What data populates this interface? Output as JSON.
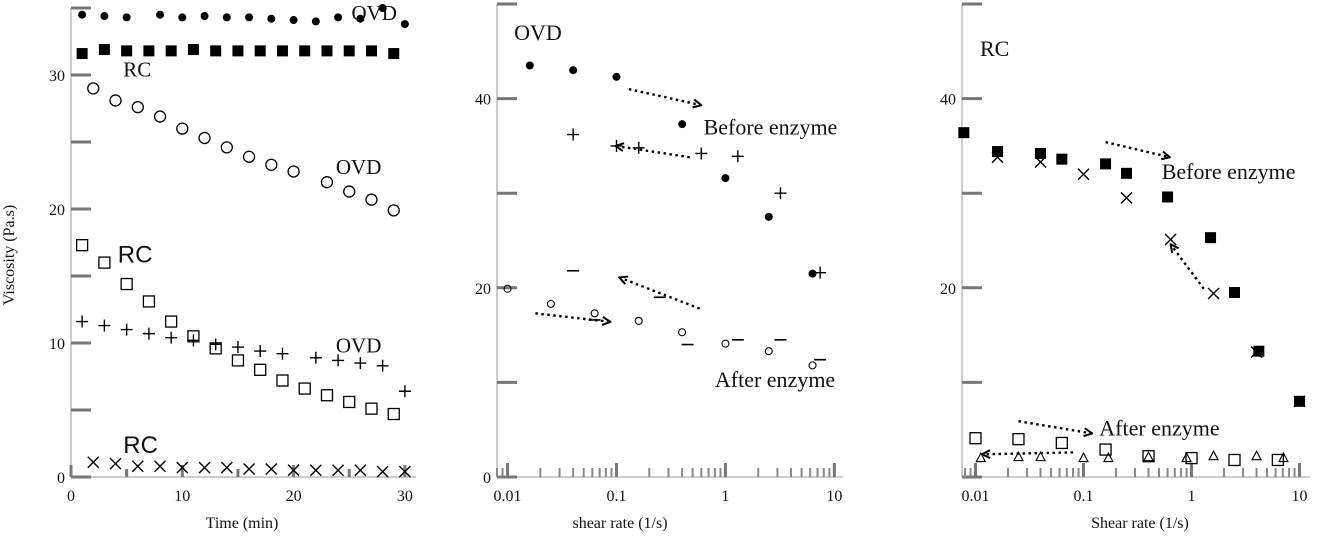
{
  "chart_data": [
    {
      "type": "scatter",
      "title": "",
      "xlabel": "Time (min)",
      "ylabel": "Viscosity (Pa.s)",
      "xlim": [
        0,
        31
      ],
      "ylim": [
        0,
        35
      ],
      "xticks": [
        0,
        10,
        20,
        30
      ],
      "yticks": [
        0,
        10,
        20,
        30
      ],
      "series": [
        {
          "name": "OVD (filled circle)",
          "marker": "dot",
          "x": [
            1,
            3,
            5,
            8,
            10,
            12,
            14,
            16,
            18,
            20,
            22,
            24,
            26,
            28,
            30
          ],
          "y": [
            34.5,
            34.4,
            34.3,
            34.5,
            34.3,
            34.4,
            34.3,
            34.3,
            34.2,
            34.1,
            34.0,
            34.3,
            34.2,
            35,
            33.8
          ]
        },
        {
          "name": "RC (filled square)",
          "marker": "square",
          "x": [
            1,
            3,
            5,
            7,
            9,
            11,
            13,
            15,
            17,
            19,
            21,
            23,
            25,
            27,
            29
          ],
          "y": [
            31.6,
            31.9,
            31.8,
            31.8,
            31.8,
            31.9,
            31.8,
            31.8,
            31.8,
            31.8,
            31.8,
            31.8,
            31.8,
            31.8,
            31.6
          ]
        },
        {
          "name": "OVD (open circle)",
          "marker": "circle",
          "x": [
            2,
            4,
            6,
            8,
            10,
            12,
            14,
            16,
            18,
            20,
            23,
            25,
            27,
            29
          ],
          "y": [
            29.0,
            28.1,
            27.6,
            26.9,
            26.0,
            25.3,
            24.6,
            23.9,
            23.3,
            22.8,
            22.0,
            21.3,
            20.7,
            19.9
          ]
        },
        {
          "name": "RC (open square)",
          "marker": "open-square",
          "x": [
            1,
            3,
            5,
            7,
            9,
            11,
            13,
            15,
            17,
            19,
            21,
            23,
            25,
            27,
            29
          ],
          "y": [
            17.3,
            16.0,
            14.4,
            13.1,
            11.6,
            10.5,
            9.6,
            8.7,
            8.0,
            7.2,
            6.6,
            6.1,
            5.6,
            5.1,
            4.7
          ]
        },
        {
          "name": "OVD (plus)",
          "marker": "plus",
          "x": [
            1,
            3,
            5,
            7,
            9,
            11,
            13,
            15,
            17,
            19,
            22,
            24,
            26,
            28,
            30
          ],
          "y": [
            11.6,
            11.3,
            11.0,
            10.7,
            10.4,
            10.2,
            9.9,
            9.7,
            9.4,
            9.2,
            8.9,
            8.7,
            8.5,
            8.3,
            6.4
          ]
        },
        {
          "name": "RC (cross)",
          "marker": "x",
          "x": [
            2,
            4,
            6,
            8,
            10,
            12,
            14,
            16,
            18,
            20,
            22,
            24,
            26,
            28,
            30
          ],
          "y": [
            1.1,
            1.0,
            0.8,
            0.8,
            0.7,
            0.7,
            0.7,
            0.6,
            0.6,
            0.5,
            0.5,
            0.5,
            0.5,
            0.4,
            0.4
          ]
        }
      ],
      "annotations": [
        {
          "text": "OVD",
          "x": 25.2,
          "y": 34.1,
          "size": 21
        },
        {
          "text": "RC",
          "x": 4.7,
          "y": 29.9,
          "size": 21
        },
        {
          "text": "OVD",
          "x": 23.8,
          "y": 22.6,
          "size": 21
        },
        {
          "text": "RC",
          "x": 4.2,
          "y": 16.0,
          "size": 24,
          "sans": true
        },
        {
          "text": "OVD",
          "x": 23.8,
          "y": 9.3,
          "size": 21
        },
        {
          "text": "RC",
          "x": 4.7,
          "y": 1.8,
          "size": 24,
          "sans": true
        }
      ]
    },
    {
      "type": "scatter",
      "title": "",
      "xlabel": "shear rate (1/s)",
      "ylabel": "",
      "xscale": "log",
      "xlim": [
        0.008,
        12
      ],
      "ylim": [
        0,
        50
      ],
      "xticks": [
        0.01,
        0.1,
        1,
        10
      ],
      "xticklabels": [
        "0.01",
        "0.1",
        "1",
        "10"
      ],
      "yticks": [
        0,
        20,
        40
      ],
      "series": [
        {
          "name": "Before enzyme (dot)",
          "marker": "dot",
          "x": [
            0.016,
            0.04,
            0.1,
            0.4,
            1,
            2.5,
            6.3
          ],
          "y": [
            43.5,
            43.0,
            42.3,
            37.3,
            31.6,
            27.5,
            21.5
          ]
        },
        {
          "name": "Before enzyme (plus)",
          "marker": "plus",
          "x": [
            0.04,
            0.1,
            0.16,
            0.6,
            1.3,
            3.2,
            7.4
          ],
          "y": [
            36.2,
            35.0,
            34.8,
            34.2,
            33.9,
            30.0,
            21.6
          ]
        },
        {
          "name": "After enzyme (small circle)",
          "marker": "small-circle",
          "x": [
            0.01,
            0.025,
            0.063,
            0.16,
            0.4,
            1,
            2.5,
            6.3
          ],
          "y": [
            19.9,
            18.3,
            17.3,
            16.5,
            15.3,
            14.1,
            13.3,
            11.8
          ]
        },
        {
          "name": "After enzyme (dash)",
          "marker": "dash",
          "x": [
            0.04,
            0.25,
            0.063,
            0.45,
            1.3,
            3.2,
            7.4
          ],
          "y": [
            21.8,
            19.0,
            16.6,
            14.0,
            14.5,
            14.5,
            12.4
          ]
        }
      ],
      "annotations": [
        {
          "text": "OVD",
          "x": 0.0115,
          "y": 46.2,
          "size": 22
        },
        {
          "text": "Before enzyme",
          "x": 0.63,
          "y": 36.2,
          "size": 22
        },
        {
          "text": "After enzyme",
          "x": 0.8,
          "y": 9.5,
          "size": 22
        }
      ],
      "arrows": [
        {
          "from": [
            0.13,
            41.0
          ],
          "to": [
            0.6,
            39.3
          ]
        },
        {
          "from": [
            0.47,
            33.8
          ],
          "to": [
            0.098,
            35.0
          ]
        },
        {
          "from": [
            0.018,
            17.3
          ],
          "to": [
            0.088,
            16.4
          ]
        },
        {
          "from": [
            0.58,
            17.8
          ],
          "to": [
            0.106,
            21.1
          ]
        }
      ]
    },
    {
      "type": "scatter",
      "title": "",
      "xlabel": "Shear rate (1/s)",
      "ylabel": "",
      "xscale": "log",
      "xlim": [
        0.0075,
        12.5
      ],
      "ylim": [
        0,
        50
      ],
      "xticks": [
        0.01,
        0.1,
        1,
        10
      ],
      "xticklabels": [
        "0.01",
        "0.1",
        "1",
        "10"
      ],
      "yticks": [
        20,
        40
      ],
      "series": [
        {
          "name": "Before enzyme (filled square)",
          "marker": "square",
          "x": [
            0.0078,
            0.016,
            0.04,
            0.063,
            0.16,
            0.25,
            0.6,
            1.5,
            2.5,
            4.2,
            10
          ],
          "y": [
            36.4,
            34.4,
            34.2,
            33.6,
            33.1,
            32.1,
            29.6,
            25.3,
            19.5,
            13.3,
            8.0
          ]
        },
        {
          "name": "Before enzyme (cross)",
          "marker": "x",
          "x": [
            0.016,
            0.04,
            0.1,
            0.25,
            0.64,
            1.6,
            4.0,
            10
          ],
          "y": [
            33.8,
            33.3,
            32.0,
            29.5,
            25.1,
            19.4,
            13.2,
            8.0
          ]
        },
        {
          "name": "After enzyme (open square)",
          "marker": "open-square",
          "x": [
            0.01,
            0.025,
            0.063,
            0.16,
            0.4,
            1,
            2.5,
            6.3
          ],
          "y": [
            4.1,
            4.0,
            3.6,
            2.9,
            2.2,
            2.0,
            1.8,
            1.8
          ]
        },
        {
          "name": "After enzyme (triangle)",
          "marker": "triangle",
          "x": [
            0.0112,
            0.025,
            0.04,
            0.1,
            0.17,
            0.4,
            0.9,
            1.6,
            4.0,
            7.1
          ],
          "y": [
            2.0,
            2.1,
            2.1,
            2.0,
            2.0,
            2.1,
            2.0,
            2.2,
            2.2,
            2.0
          ]
        }
      ],
      "annotations": [
        {
          "text": "RC",
          "x": 0.011,
          "y": 44.5,
          "size": 22
        },
        {
          "text": "Before enzyme",
          "x": 0.53,
          "y": 31.5,
          "size": 22
        },
        {
          "text": "After enzyme",
          "x": 0.14,
          "y": 4.4,
          "size": 22
        }
      ],
      "arrows": [
        {
          "from": [
            0.16,
            35.4
          ],
          "to": [
            0.63,
            33.8
          ]
        },
        {
          "from": [
            1.3,
            19.9
          ],
          "to": [
            0.64,
            24.6
          ]
        },
        {
          "from": [
            0.025,
            5.9
          ],
          "to": [
            0.12,
            4.6
          ]
        },
        {
          "from": [
            0.08,
            2.6
          ],
          "to": [
            0.0115,
            2.4
          ]
        }
      ]
    }
  ]
}
